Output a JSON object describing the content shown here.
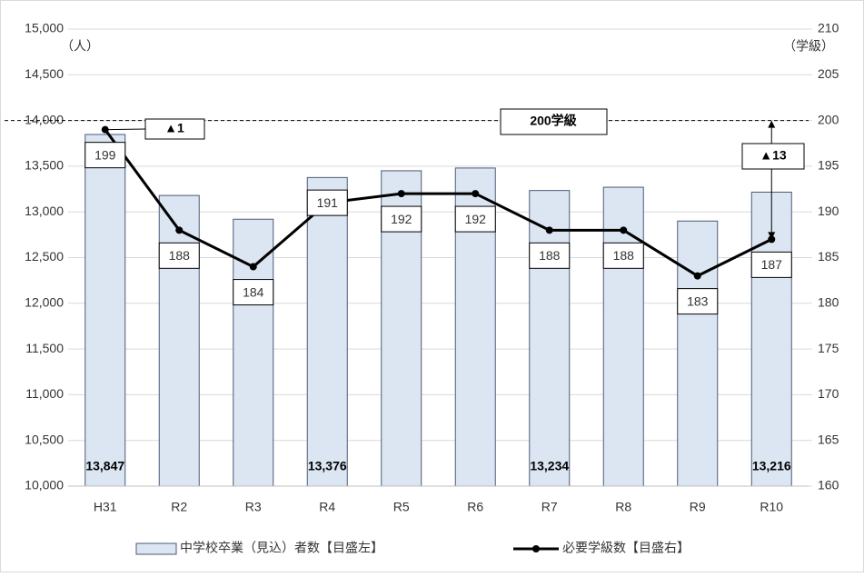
{
  "chart_data": {
    "type": "combo",
    "categories": [
      "H31",
      "R2",
      "R3",
      "R4",
      "R5",
      "R6",
      "R7",
      "R8",
      "R9",
      "R10"
    ],
    "series": [
      {
        "name": "中学校卒業（見込）者数【目盛左】",
        "type": "bar",
        "axis": "y",
        "color": "#dce6f2",
        "stroke": "#4a5a78",
        "values": [
          13847,
          13180,
          12920,
          13376,
          13450,
          13480,
          13234,
          13270,
          12900,
          13216
        ],
        "value_labels": [
          "13,847",
          null,
          null,
          "13,376",
          null,
          null,
          "13,234",
          null,
          null,
          "13,216"
        ]
      },
      {
        "name": "必要学級数【目盛右】",
        "type": "line",
        "axis": "y2",
        "color": "#000000",
        "values": [
          199,
          188,
          184,
          191,
          192,
          192,
          188,
          188,
          183,
          187
        ]
      }
    ],
    "ylim": [
      10000,
      15000
    ],
    "yticks": [
      {
        "value": 10000,
        "label": "10,000"
      },
      {
        "value": 10500,
        "label": "10,500"
      },
      {
        "value": 11000,
        "label": "11,000"
      },
      {
        "value": 11500,
        "label": "11,500"
      },
      {
        "value": 12000,
        "label": "12,000"
      },
      {
        "value": 12500,
        "label": "12,500"
      },
      {
        "value": 13000,
        "label": "13,000"
      },
      {
        "value": 13500,
        "label": "13,500"
      },
      {
        "value": 14000,
        "label": "14,000"
      },
      {
        "value": 14500,
        "label": "14,500"
      },
      {
        "value": 15000,
        "label": "15,000"
      }
    ],
    "y2lim": [
      160,
      210
    ],
    "y2ticks": [
      160,
      165,
      170,
      175,
      180,
      185,
      190,
      195,
      200,
      205,
      210
    ],
    "y_unit": "（人）",
    "y2_unit": "（学級）",
    "y2_reference": 200,
    "annotations": [
      "▲1",
      "200学級",
      "▲13"
    ],
    "grid": true
  }
}
